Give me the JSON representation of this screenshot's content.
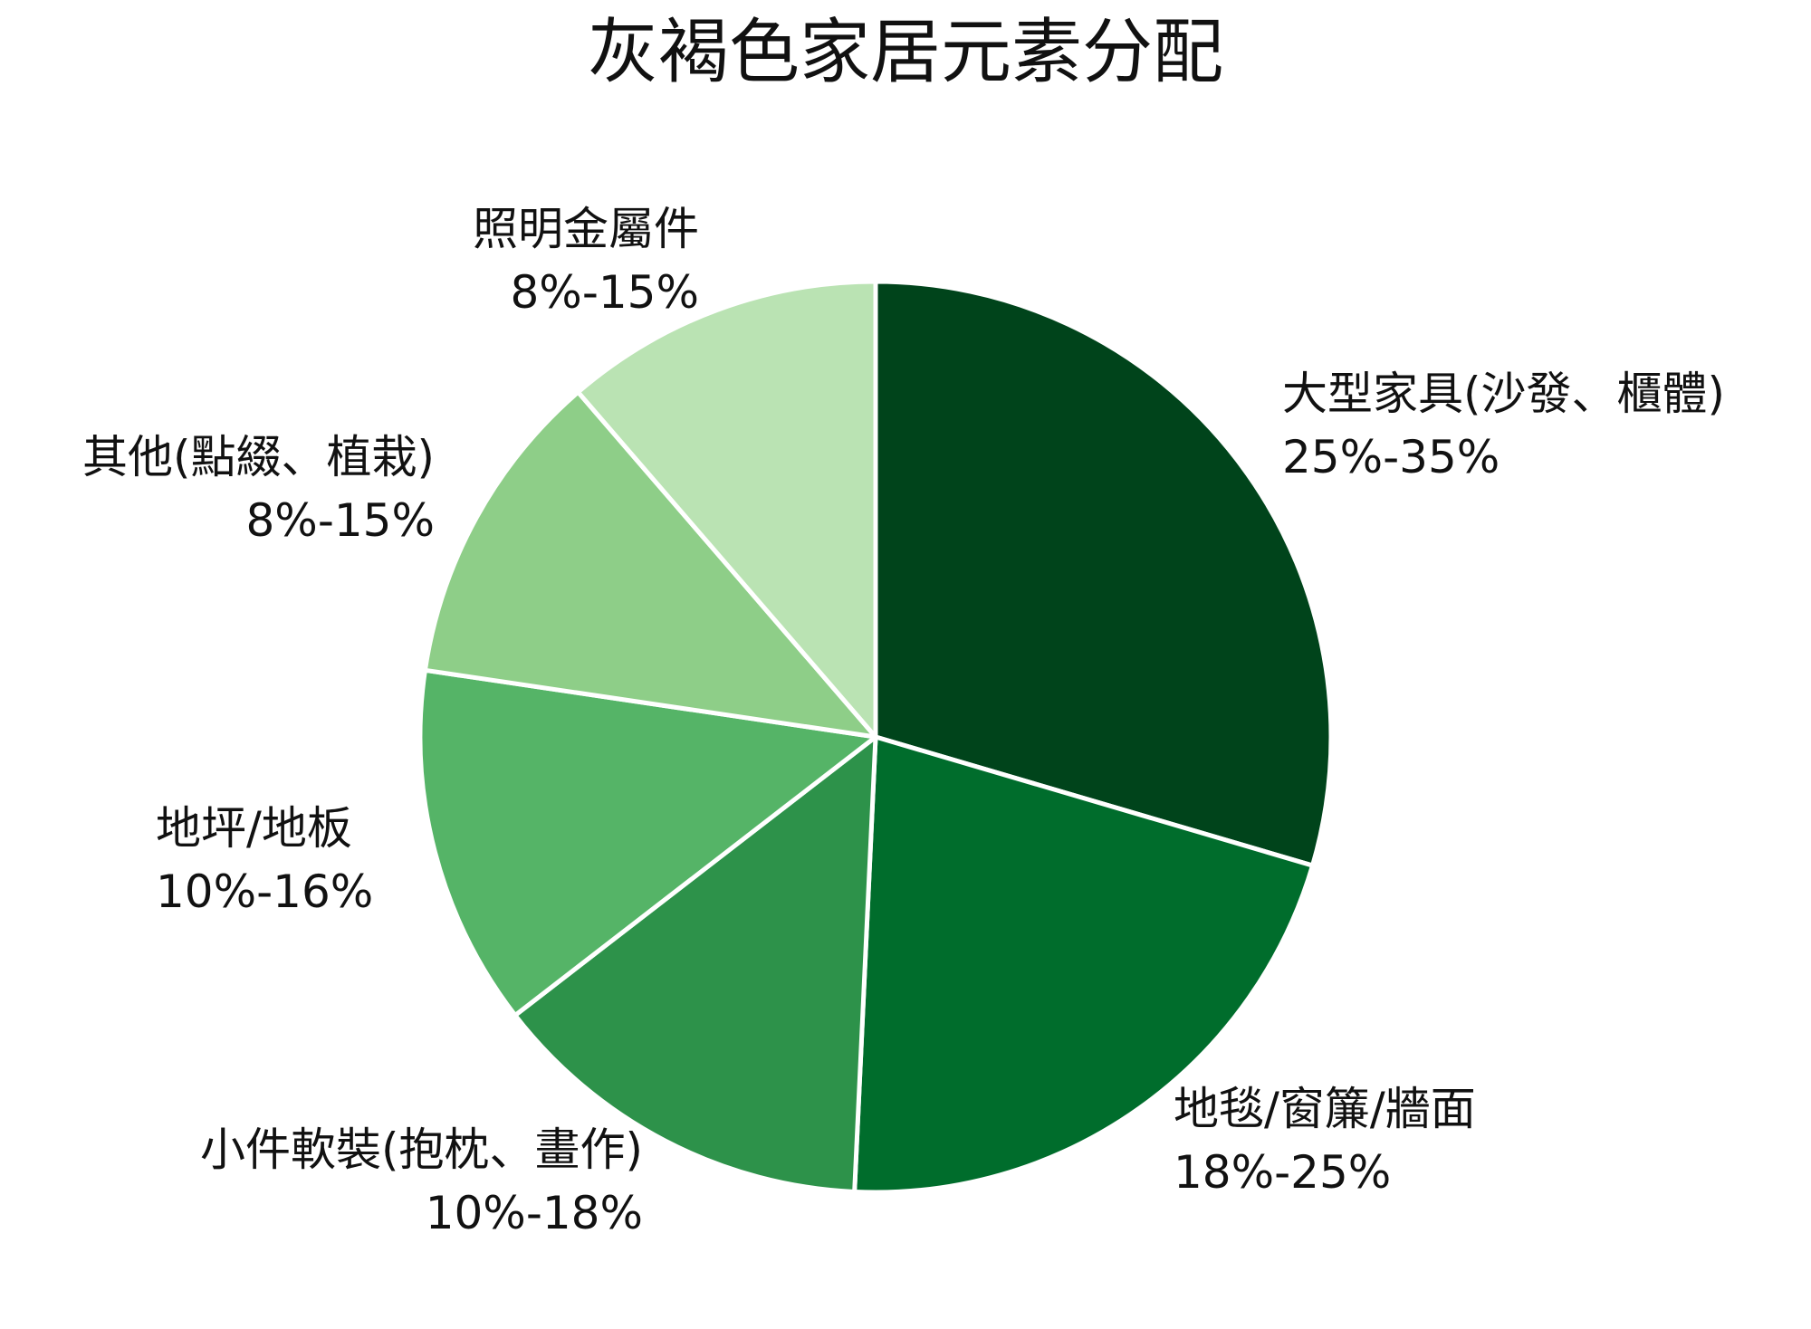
{
  "chart_data": {
    "type": "pie",
    "title": "灰褐色家居元素分配",
    "start_angle_deg": 0,
    "direction": "clockwise",
    "slices": [
      {
        "name": "大型家具(沙發、櫃體)",
        "range": "25%-35%",
        "value": 30.0,
        "color": "#00441b"
      },
      {
        "name": "地毯/窗簾/牆面",
        "range": "18%-25%",
        "value": 21.5,
        "color": "#006d2c"
      },
      {
        "name": "小件軟裝(抱枕、畫作)",
        "range": "10%-18%",
        "value": 14.0,
        "color": "#2d924a"
      },
      {
        "name": "地坪/地板",
        "range": "10%-16%",
        "value": 13.0,
        "color": "#55b467"
      },
      {
        "name": "其他(點綴、植栽)",
        "range": "8%-15%",
        "value": 11.5,
        "color": "#8ece88"
      },
      {
        "name": "照明金屬件",
        "range": "8%-15%",
        "value": 11.5,
        "color": "#bae3b3"
      }
    ]
  }
}
